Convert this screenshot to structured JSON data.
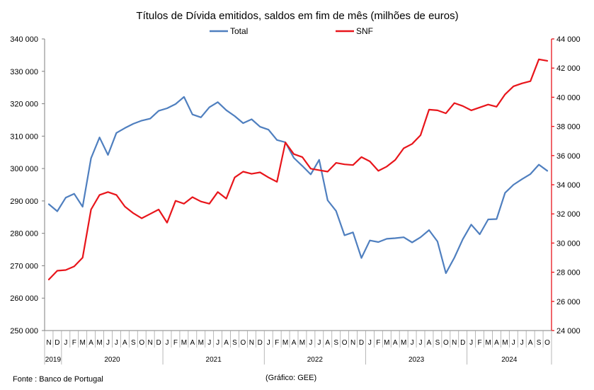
{
  "chart_data": {
    "type": "line",
    "title": "Títulos de Dívida emitidos, saldos em fim de mês  (milhões de euros)",
    "legend_position": "top",
    "grid": false,
    "footnote_source": "Fonte : Banco de Portugal",
    "footnote_credit": "(Gráfico: GEE)",
    "left_axis": {
      "ylim": [
        250000,
        340000
      ],
      "ticks": [
        "250 000",
        "260 000",
        "270 000",
        "280 000",
        "290 000",
        "300 000",
        "310 000",
        "320 000",
        "330 000",
        "340 000"
      ],
      "tick_values": [
        250000,
        260000,
        270000,
        280000,
        290000,
        300000,
        310000,
        320000,
        330000,
        340000
      ]
    },
    "right_axis": {
      "ylim": [
        24000,
        44000
      ],
      "color": "#e8151b",
      "ticks": [
        "24 000",
        "26 000",
        "28 000",
        "30 000",
        "32 000",
        "34 000",
        "36 000",
        "38 000",
        "40 000",
        "42 000",
        "44 000"
      ],
      "tick_values": [
        24000,
        26000,
        28000,
        30000,
        32000,
        34000,
        36000,
        38000,
        40000,
        42000,
        44000
      ]
    },
    "x_months": [
      "N",
      "D",
      "J",
      "F",
      "M",
      "A",
      "M",
      "J",
      "J",
      "A",
      "S",
      "O",
      "N",
      "D",
      "J",
      "F",
      "M",
      "A",
      "M",
      "J",
      "J",
      "A",
      "S",
      "O",
      "N",
      "D",
      "J",
      "F",
      "M",
      "A",
      "M",
      "J",
      "J",
      "A",
      "S",
      "O",
      "N",
      "D",
      "J",
      "F",
      "M",
      "A",
      "M",
      "J",
      "J",
      "A",
      "S",
      "O",
      "N",
      "D",
      "J",
      "F",
      "M",
      "A",
      "M",
      "J",
      "J",
      "A",
      "S",
      "O"
    ],
    "x_years": [
      {
        "label": "2019",
        "start": 0,
        "count": 2
      },
      {
        "label": "2020",
        "start": 2,
        "count": 12
      },
      {
        "label": "2021",
        "start": 14,
        "count": 12
      },
      {
        "label": "2022",
        "start": 26,
        "count": 12
      },
      {
        "label": "2023",
        "start": 38,
        "count": 12
      },
      {
        "label": "2024",
        "start": 50,
        "count": 10
      }
    ],
    "series": [
      {
        "name": "Total",
        "axis": "left",
        "color": "#4f7fbf",
        "values": [
          289000,
          286800,
          291000,
          292200,
          288200,
          303200,
          309600,
          304200,
          311000,
          312500,
          313800,
          314800,
          315400,
          317800,
          318600,
          319900,
          322100,
          316700,
          315800,
          318900,
          320500,
          318000,
          316200,
          314000,
          315200,
          312900,
          312000,
          308800,
          308100,
          303300,
          300800,
          298200,
          302700,
          290200,
          286900,
          279400,
          280300,
          272400,
          277800,
          277300,
          278300,
          278500,
          278800,
          277200,
          278800,
          281000,
          277500,
          267700,
          272500,
          278200,
          282700,
          279700,
          284300,
          284400,
          292500,
          295000,
          296700,
          298300,
          301200,
          299300
        ]
      },
      {
        "name": "SNF",
        "axis": "right",
        "color": "#e8151b",
        "values": [
          27500,
          28100,
          28150,
          28400,
          29000,
          32300,
          33300,
          33500,
          33300,
          32500,
          32050,
          31700,
          32000,
          32300,
          31400,
          32900,
          32700,
          33150,
          32850,
          32700,
          33500,
          33050,
          34500,
          34900,
          34750,
          34850,
          34500,
          34200,
          36900,
          36100,
          35900,
          35100,
          35000,
          34900,
          35500,
          35400,
          35350,
          35900,
          35600,
          34950,
          35250,
          35700,
          36500,
          36800,
          37400,
          39150,
          39100,
          38900,
          39600,
          39400,
          39100,
          39300,
          39500,
          39350,
          40200,
          40750,
          40950,
          41100,
          42600,
          42500
        ]
      }
    ]
  }
}
